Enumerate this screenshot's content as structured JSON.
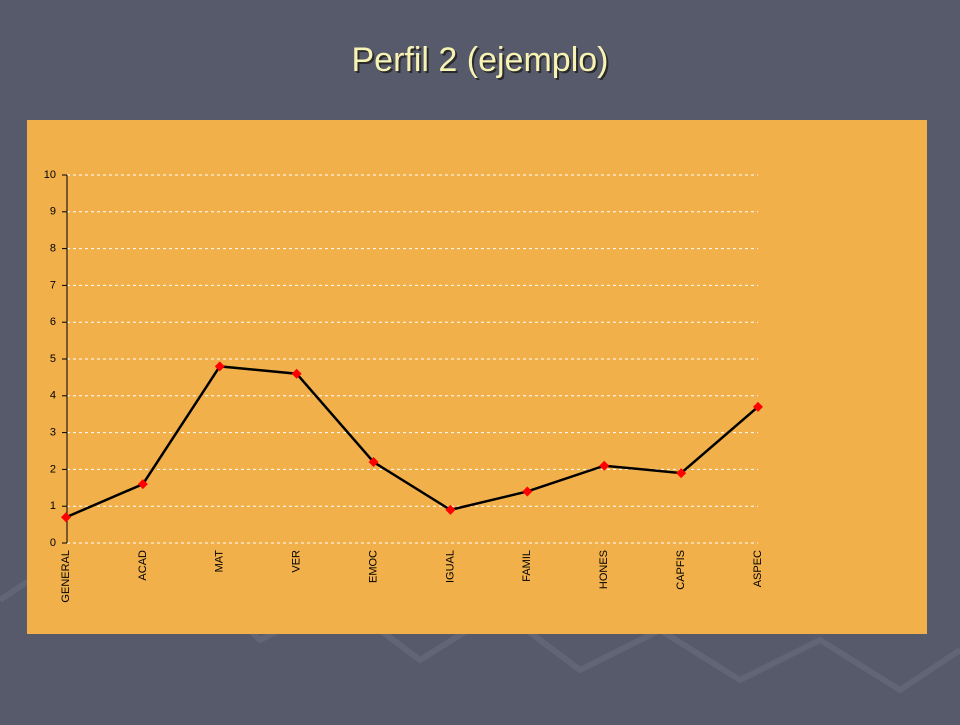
{
  "chart_data": {
    "type": "line",
    "title": "Perfil 2 (ejemplo)",
    "categories": [
      "GENERAL",
      "ACAD",
      "MAT",
      "VER",
      "EMOC",
      "IGUAL",
      "FAMIL",
      "HONES",
      "CAPFIS",
      "ASPEC"
    ],
    "series": [
      {
        "color": "#000000",
        "marker_color": "#ff0000",
        "values": [
          0.7,
          1.6,
          4.8,
          4.6,
          2.2,
          0.9,
          1.4,
          2.1,
          1.9,
          3.7
        ]
      }
    ],
    "ylim": [
      0,
      10
    ],
    "yticks": [
      0,
      1,
      2,
      3,
      4,
      5,
      6,
      7,
      8,
      9,
      10
    ],
    "grid": true
  }
}
